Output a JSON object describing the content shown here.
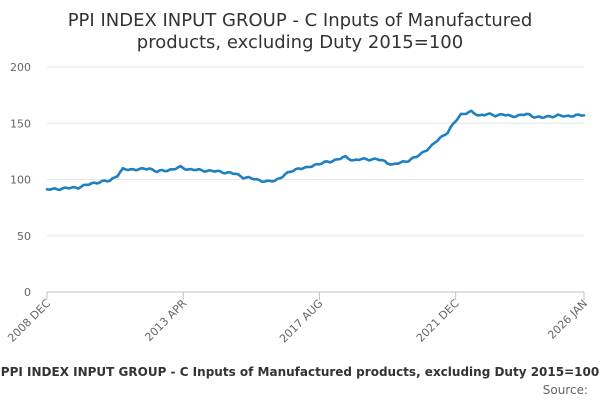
{
  "chart_data": {
    "type": "line",
    "title": "PPI INDEX INPUT GROUP - C Inputs of Manufactured products, excluding Duty 2015=100",
    "title_lines": [
      "PPI INDEX INPUT GROUP - C Inputs of Manufactured",
      "products, excluding Duty 2015=100"
    ],
    "xlabel": "",
    "ylabel": "",
    "ylim": [
      0,
      200
    ],
    "yticks": [
      "0",
      "50",
      "100",
      "150",
      "200"
    ],
    "xlim": [
      "2008-12",
      "2026-01"
    ],
    "xticks": [
      {
        "date": "2008-12",
        "label": "2008 DEC"
      },
      {
        "date": "2013-04",
        "label": "2013 APR"
      },
      {
        "date": "2017-08",
        "label": "2017 AUG"
      },
      {
        "date": "2021-12",
        "label": "2021 DEC"
      },
      {
        "date": "2026-01",
        "label": "2026 JAN"
      }
    ],
    "grid": true,
    "legend_position": "bottom",
    "series": [
      {
        "name": "PPI INDEX INPUT GROUP - C Inputs of Manufactured products, excluding Duty 2015=100",
        "color": "#1f7fc0",
        "points": [
          [
            "2008-12",
            91
          ],
          [
            "2009-06",
            92
          ],
          [
            "2009-12",
            93
          ],
          [
            "2010-06",
            97
          ],
          [
            "2010-12",
            99
          ],
          [
            "2011-03",
            104
          ],
          [
            "2011-05",
            109
          ],
          [
            "2011-12",
            109
          ],
          [
            "2012-03",
            110
          ],
          [
            "2012-06",
            107
          ],
          [
            "2012-12",
            109
          ],
          [
            "2013-03",
            111
          ],
          [
            "2013-06",
            109
          ],
          [
            "2013-12",
            108
          ],
          [
            "2014-06",
            107
          ],
          [
            "2014-12",
            105
          ],
          [
            "2015-03",
            102
          ],
          [
            "2015-06",
            101
          ],
          [
            "2015-12",
            98
          ],
          [
            "2016-03",
            99
          ],
          [
            "2016-06",
            103
          ],
          [
            "2016-09",
            107
          ],
          [
            "2016-12",
            110
          ],
          [
            "2017-03",
            110
          ],
          [
            "2017-06",
            113
          ],
          [
            "2017-12",
            116
          ],
          [
            "2018-06",
            120
          ],
          [
            "2018-09",
            117
          ],
          [
            "2018-12",
            118
          ],
          [
            "2019-06",
            118
          ],
          [
            "2019-09",
            116
          ],
          [
            "2019-12",
            113
          ],
          [
            "2020-03",
            115
          ],
          [
            "2020-06",
            117
          ],
          [
            "2020-09",
            120
          ],
          [
            "2020-12",
            125
          ],
          [
            "2021-03",
            130
          ],
          [
            "2021-06",
            137
          ],
          [
            "2021-09",
            142
          ],
          [
            "2021-12",
            152
          ],
          [
            "2022-02",
            158
          ],
          [
            "2022-06",
            160
          ],
          [
            "2022-09",
            157
          ],
          [
            "2022-12",
            158
          ],
          [
            "2023-03",
            157
          ],
          [
            "2023-06",
            158
          ],
          [
            "2023-09",
            156
          ],
          [
            "2023-12",
            157
          ],
          [
            "2024-03",
            158
          ],
          [
            "2024-06",
            156
          ],
          [
            "2024-09",
            155
          ],
          [
            "2024-12",
            156
          ],
          [
            "2025-03",
            157
          ],
          [
            "2025-06",
            156
          ],
          [
            "2025-09",
            157
          ],
          [
            "2026-01",
            157
          ]
        ]
      }
    ],
    "source_label": "Source:"
  }
}
